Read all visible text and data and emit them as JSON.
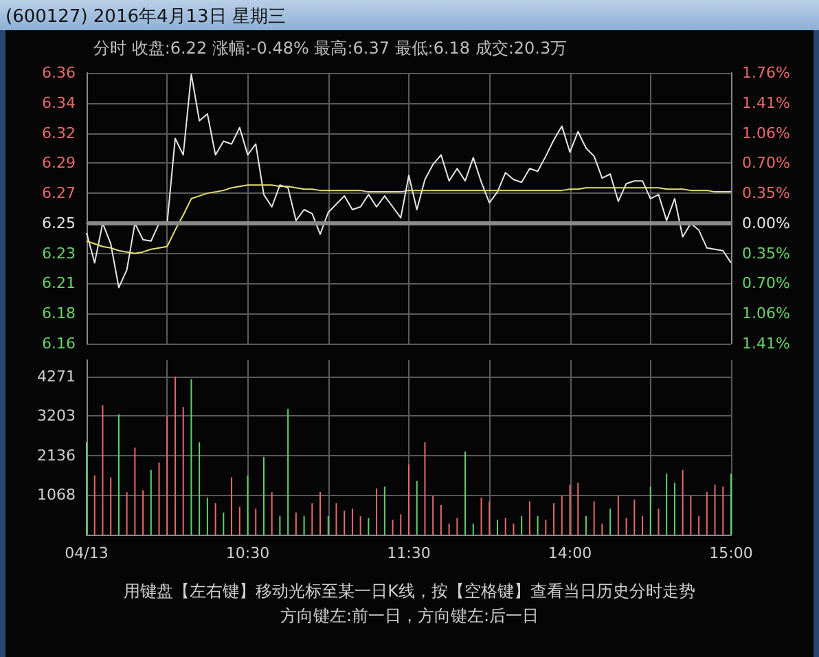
{
  "chart_data": [
    {
      "type": "line",
      "title": "(600127) 2016年4月13日 星期三",
      "subtitle": "分时 收盘:6.22 涨幅:-0.48% 最高:6.37 最低:6.18 成交:20.3万",
      "categories": [
        null,
        null,
        null,
        null,
        null,
        null,
        null,
        null,
        null,
        null,
        null,
        null,
        null,
        null,
        null,
        null,
        null,
        null,
        null,
        null,
        null,
        null,
        null,
        null,
        null,
        null,
        null,
        null,
        null,
        null,
        null,
        null,
        null,
        null,
        null,
        null,
        null,
        null,
        null,
        null,
        null,
        null,
        null,
        null,
        null,
        null,
        null,
        null,
        null,
        null,
        null,
        null,
        null,
        null,
        null,
        null,
        null,
        null,
        null,
        null,
        null,
        null,
        null,
        null,
        null,
        null,
        null,
        null,
        null,
        null,
        null,
        null,
        null,
        null,
        null,
        null,
        null,
        null,
        null,
        null,
        null
      ],
      "series": [
        {
          "color": "#e6e6e6",
          "values": [
            6.243,
            6.221,
            6.25,
            6.235,
            6.203,
            6.216,
            6.25,
            6.238,
            6.237,
            6.25,
            6.25,
            6.312,
            6.3,
            6.359,
            6.325,
            6.33,
            6.3,
            6.31,
            6.308,
            6.32,
            6.3,
            6.308,
            6.271,
            6.262,
            6.278,
            6.276,
            6.252,
            6.26,
            6.257,
            6.242,
            6.258,
            6.264,
            6.27,
            6.26,
            6.262,
            6.271,
            6.262,
            6.27,
            6.262,
            6.254,
            6.285,
            6.26,
            6.282,
            6.293,
            6.3,
            6.281,
            6.29,
            6.281,
            6.298,
            6.28,
            6.265,
            6.273,
            6.287,
            6.282,
            6.28,
            6.29,
            6.288,
            6.299,
            6.311,
            6.321,
            6.302,
            6.317,
            6.305,
            6.299,
            6.283,
            6.286,
            6.266,
            6.279,
            6.281,
            6.281,
            6.268,
            6.271,
            6.252,
            6.268,
            6.24,
            6.25,
            6.245,
            6.232,
            6.231,
            6.23,
            6.221
          ]
        },
        {
          "color": "#e8e070",
          "values": [
            6.237,
            6.235,
            6.233,
            6.232,
            6.23,
            6.229,
            6.228,
            6.229,
            6.231,
            6.232,
            6.233,
            6.245,
            6.256,
            6.268,
            6.27,
            6.272,
            6.273,
            6.274,
            6.276,
            6.277,
            6.278,
            6.278,
            6.278,
            6.278,
            6.277,
            6.277,
            6.276,
            6.275,
            6.275,
            6.274,
            6.274,
            6.274,
            6.274,
            6.274,
            6.274,
            6.273,
            6.273,
            6.273,
            6.273,
            6.273,
            6.274,
            6.274,
            6.274,
            6.274,
            6.274,
            6.274,
            6.274,
            6.274,
            6.274,
            6.274,
            6.274,
            6.274,
            6.274,
            6.274,
            6.274,
            6.274,
            6.274,
            6.274,
            6.274,
            6.274,
            6.275,
            6.275,
            6.276,
            6.276,
            6.276,
            6.276,
            6.276,
            6.276,
            6.276,
            6.276,
            6.276,
            6.276,
            6.275,
            6.275,
            6.275,
            6.274,
            6.274,
            6.274,
            6.273,
            6.273,
            6.273
          ]
        }
      ],
      "ylim": [
        6.162,
        6.36
      ],
      "yticks": [
        {
          "value": 6.162,
          "label": "6.16"
        },
        {
          "value": 6.184,
          "label": "6.18"
        },
        {
          "value": 6.206,
          "label": "6.21"
        },
        {
          "value": 6.228,
          "label": "6.23"
        },
        6.25,
        {
          "value": 6.272,
          "label": "6.27"
        },
        {
          "value": 6.294,
          "label": "6.29"
        },
        {
          "value": 6.316,
          "label": "6.32"
        },
        {
          "value": 6.338,
          "label": "6.34"
        },
        6.36
      ],
      "y2lim": [
        -1.408,
        1.76
      ],
      "y2ticks": [
        {
          "value": -1.408,
          "label": "1.41%"
        },
        {
          "value": -1.056,
          "label": "1.06%"
        },
        {
          "value": -0.704,
          "label": "0.70%"
        },
        {
          "value": -0.352,
          "label": "0.35%"
        },
        {
          "value": 0,
          "label": "0.00%"
        },
        {
          "value": 0.352,
          "label": "0.35%"
        },
        {
          "value": 0.704,
          "label": "0.70%"
        },
        {
          "value": 1.056,
          "label": "1.06%"
        },
        {
          "value": 1.408,
          "label": "1.41%"
        },
        {
          "value": 1.76,
          "label": "1.76%"
        }
      ],
      "ref_lines": [
        {
          "axis": "y",
          "value": 6.25,
          "color": "#8a8a8a"
        }
      ],
      "grid": true
    },
    {
      "type": "bar",
      "categories": [
        "04/13",
        null,
        null,
        null,
        null,
        null,
        null,
        null,
        null,
        null,
        null,
        null,
        null,
        null,
        null,
        null,
        null,
        null,
        null,
        null,
        "10:30",
        null,
        null,
        null,
        null,
        null,
        null,
        null,
        null,
        null,
        null,
        null,
        null,
        null,
        null,
        null,
        null,
        null,
        null,
        null,
        "11:30",
        null,
        null,
        null,
        null,
        null,
        null,
        null,
        null,
        null,
        null,
        null,
        null,
        null,
        null,
        null,
        null,
        null,
        null,
        null,
        "14:00",
        null,
        null,
        null,
        null,
        null,
        null,
        null,
        null,
        null,
        null,
        null,
        null,
        null,
        null,
        null,
        null,
        null,
        null,
        null,
        "15:00"
      ],
      "values": [
        2500,
        1600,
        3500,
        1550,
        3250,
        1150,
        2350,
        1200,
        1750,
        1950,
        3200,
        4270,
        3450,
        4200,
        2500,
        1000,
        850,
        600,
        1550,
        750,
        1600,
        700,
        2100,
        1150,
        500,
        3400,
        600,
        500,
        850,
        1150,
        500,
        850,
        650,
        700,
        500,
        450,
        1250,
        1300,
        400,
        550,
        1900,
        1450,
        2500,
        1050,
        800,
        300,
        450,
        2250,
        300,
        1000,
        900,
        400,
        450,
        300,
        500,
        900,
        500,
        400,
        850,
        1050,
        1350,
        1400,
        500,
        900,
        300,
        700,
        1050,
        450,
        950,
        500,
        1300,
        700,
        1650,
        1400,
        1750,
        1050,
        500,
        1150,
        1350,
        1300,
        1650
      ],
      "colors": [
        "#5fd36a",
        "#e86a6a",
        "#e86a6a",
        "#e86a6a",
        "#5fd36a",
        "#e86a6a",
        "#e86a6a",
        "#e86a6a",
        "#5fd36a",
        "#e86a6a",
        "#e86a6a",
        "#e86a6a",
        "#e86a6a",
        "#5fd36a",
        "#5fd36a",
        "#5fd36a",
        "#e86a6a",
        "#5fd36a",
        "#e86a6a",
        "#e86a6a",
        "#5fd36a",
        "#e86a6a",
        "#5fd36a",
        "#e86a6a",
        "#5fd36a",
        "#5fd36a",
        "#e86a6a",
        "#5fd36a",
        "#e86a6a",
        "#e86a6a",
        "#5fd36a",
        "#e86a6a",
        "#e86a6a",
        "#e86a6a",
        "#e86a6a",
        "#5fd36a",
        "#e86a6a",
        "#5fd36a",
        "#e86a6a",
        "#e86a6a",
        "#e86a6a",
        "#5fd36a",
        "#e86a6a",
        "#e86a6a",
        "#e86a6a",
        "#e86a6a",
        "#e86a6a",
        "#5fd36a",
        "#5fd36a",
        "#e86a6a",
        "#e86a6a",
        "#5fd36a",
        "#e86a6a",
        "#e86a6a",
        "#5fd36a",
        "#e86a6a",
        "#5fd36a",
        "#e86a6a",
        "#e86a6a",
        "#e86a6a",
        "#e86a6a",
        "#e86a6a",
        "#5fd36a",
        "#e86a6a",
        "#e86a6a",
        "#5fd36a",
        "#e86a6a",
        "#e86a6a",
        "#e86a6a",
        "#e86a6a",
        "#5fd36a",
        "#e86a6a",
        "#5fd36a",
        "#5fd36a",
        "#e86a6a",
        "#e86a6a",
        "#e86a6a",
        "#e86a6a",
        "#e86a6a",
        "#e86a6a",
        "#5fd36a"
      ],
      "ylim": [
        0,
        4716
      ],
      "yticks": [
        {
          "value": 0,
          "label": null
        },
        1068,
        2136,
        3203,
        4271
      ],
      "grid": true,
      "annotations": [
        "用键盘【左右键】移动光标至某一日K线，按【空格键】查看当日历史分时走势",
        "方向键左:前一日，方向键左:后一日"
      ]
    }
  ]
}
